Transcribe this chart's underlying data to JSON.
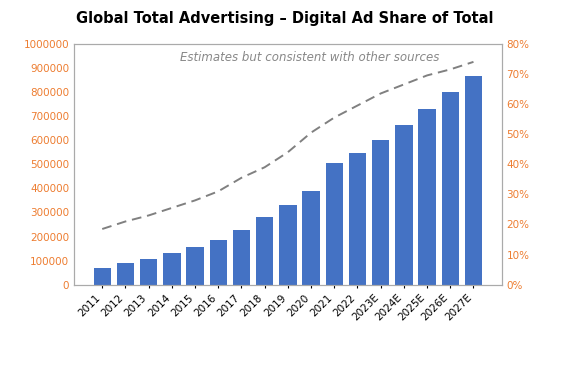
{
  "title": "Global Total Advertising – Digital Ad Share of Total",
  "subtitle": "Estimates but consistent with other sources",
  "categories": [
    "2011",
    "2012",
    "2013",
    "2014",
    "2015",
    "2016",
    "2017",
    "2018",
    "2019",
    "2020",
    "2021",
    "2022",
    "2023E",
    "2024E",
    "2025E",
    "2026E",
    "2027E"
  ],
  "bar_values": [
    70000,
    90000,
    105000,
    130000,
    155000,
    185000,
    225000,
    280000,
    330000,
    390000,
    505000,
    545000,
    600000,
    665000,
    730000,
    800000,
    865000
  ],
  "dashed_values": [
    0.185,
    0.21,
    0.23,
    0.255,
    0.28,
    0.31,
    0.355,
    0.39,
    0.44,
    0.505,
    0.555,
    0.595,
    0.635,
    0.665,
    0.695,
    0.715,
    0.74
  ],
  "bar_color": "#4472C4",
  "dashed_color": "#808080",
  "tick_label_color": "#ED7D31",
  "ylim_left": [
    0,
    1000000
  ],
  "ylim_right": [
    0,
    0.8
  ],
  "yticks_left": [
    0,
    100000,
    200000,
    300000,
    400000,
    500000,
    600000,
    700000,
    800000,
    900000,
    1000000
  ],
  "yticks_right": [
    0.0,
    0.1,
    0.2,
    0.3,
    0.4,
    0.5,
    0.6,
    0.7,
    0.8
  ],
  "background_color": "#FFFFFF",
  "title_fontsize": 10.5,
  "subtitle_fontsize": 8.5,
  "tick_fontsize": 7.5,
  "border_color": "#AAAAAA"
}
